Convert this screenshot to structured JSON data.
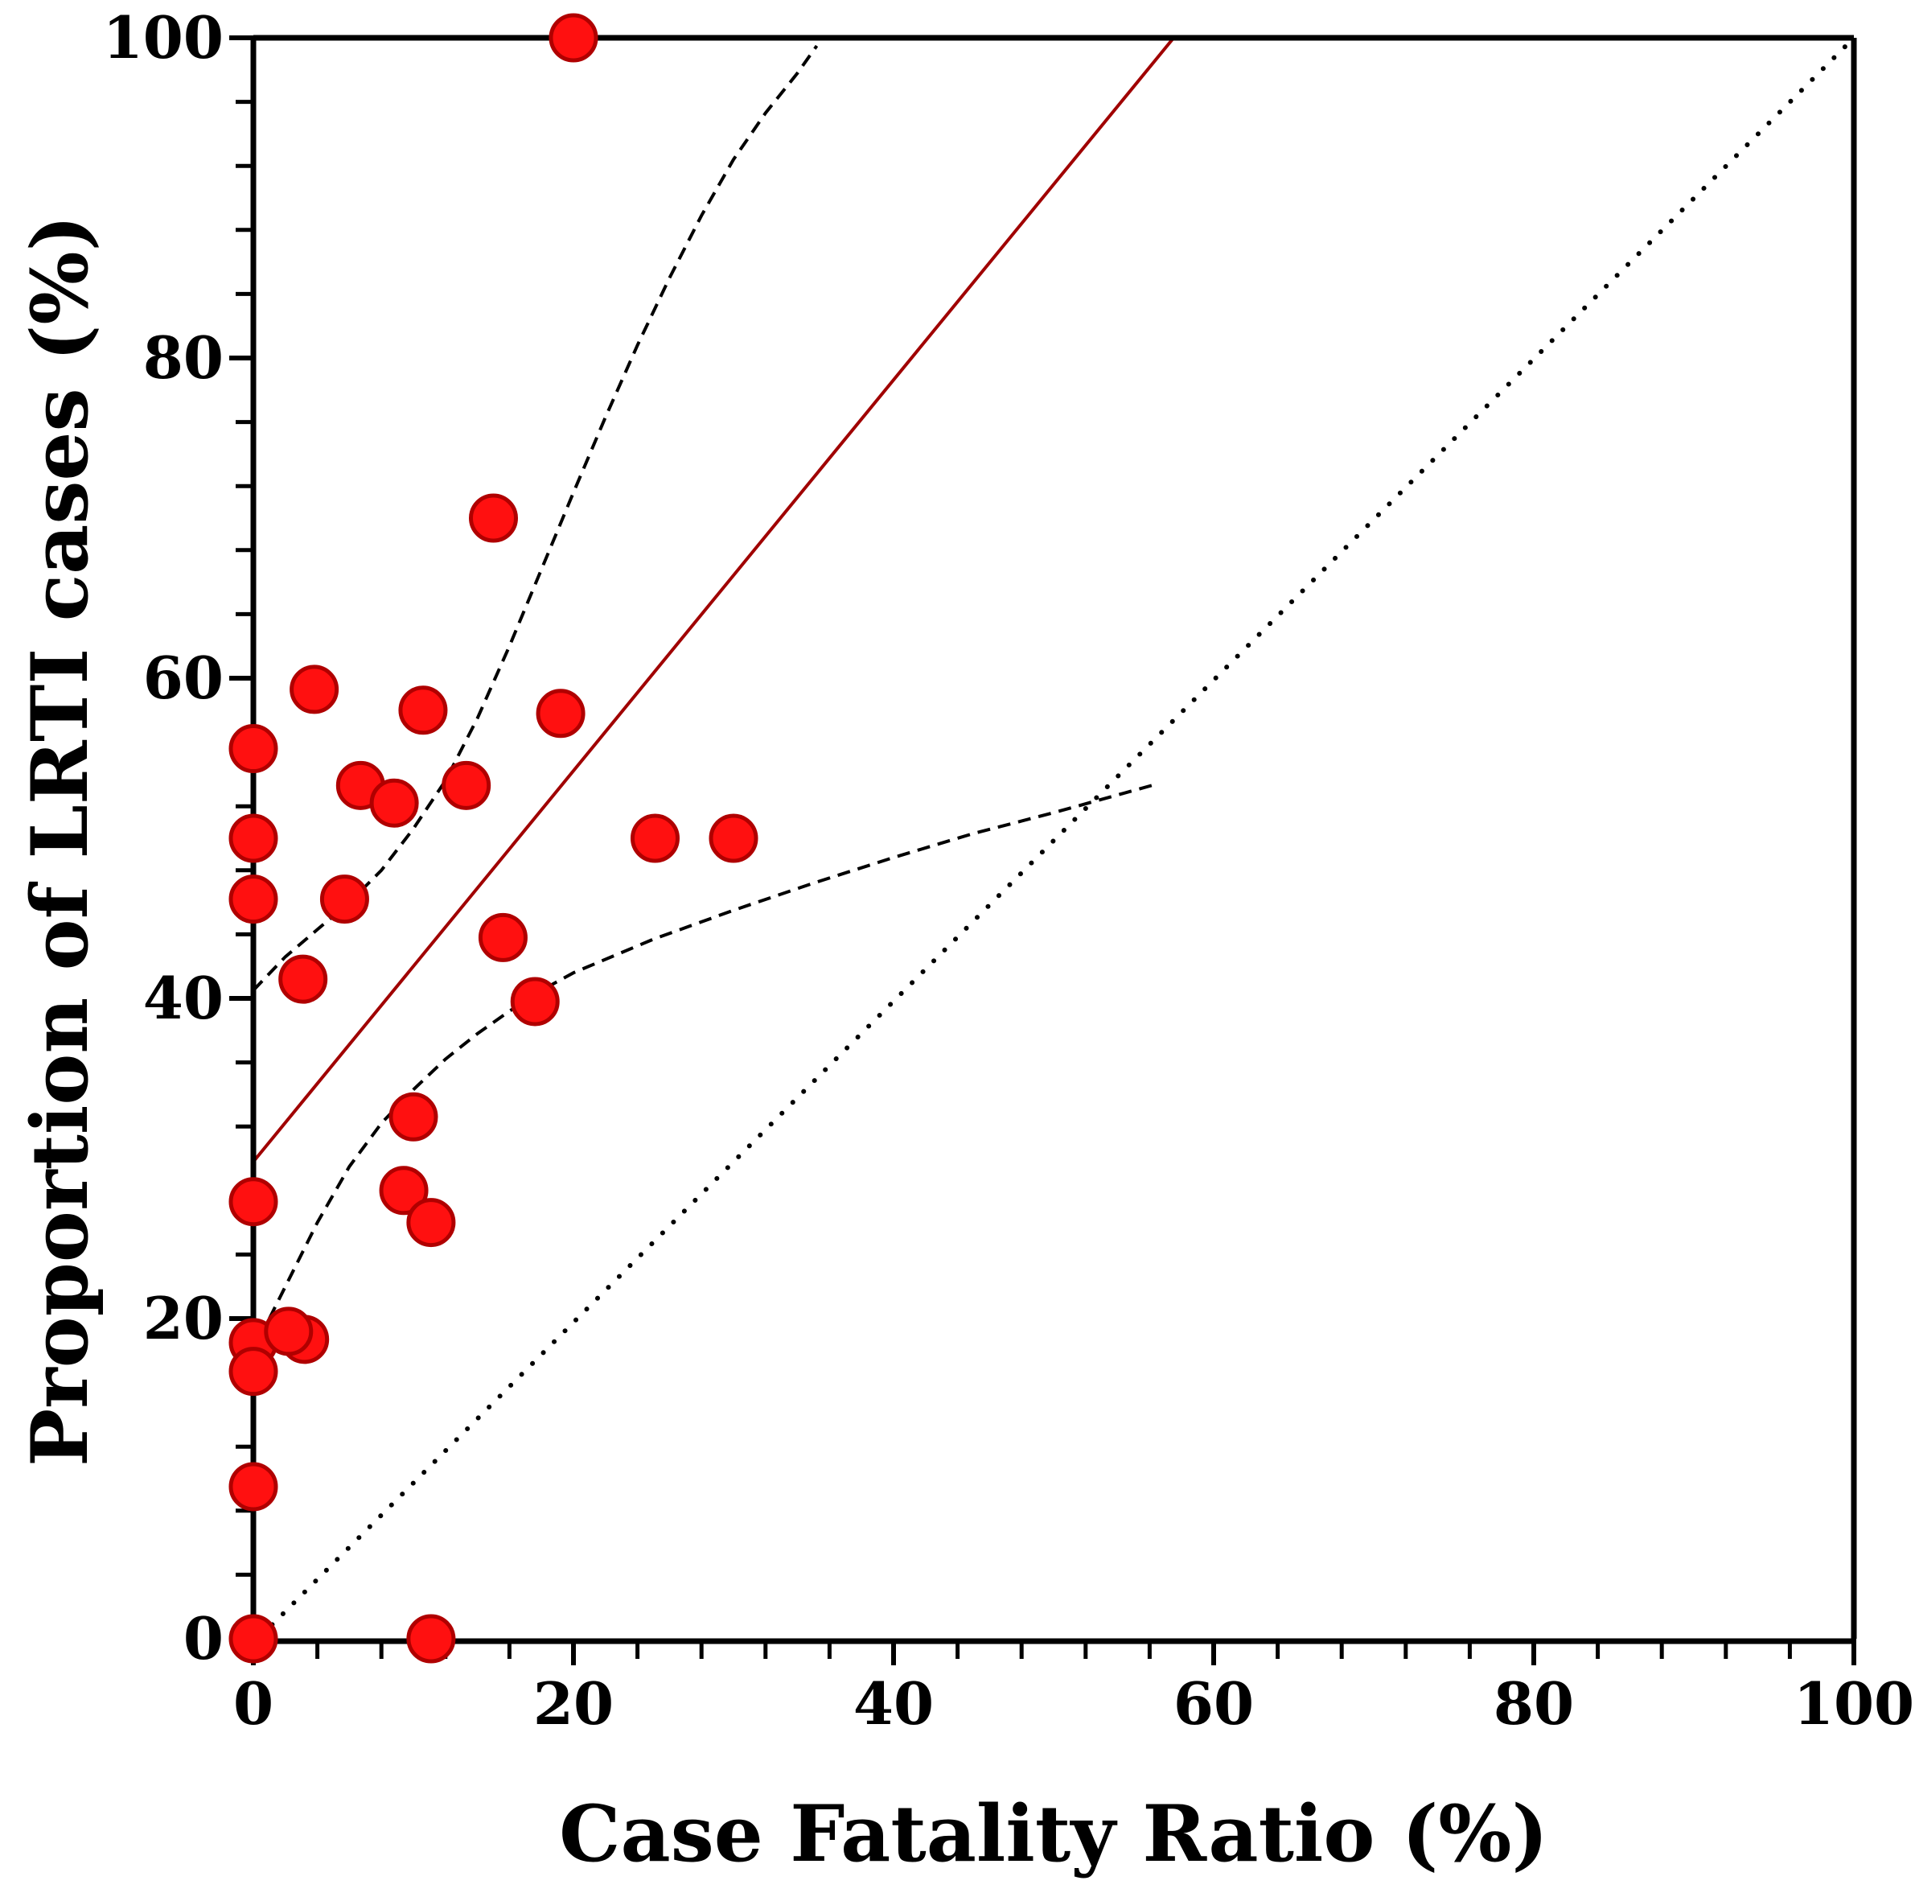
{
  "chart_data": {
    "type": "scatter",
    "xlabel": "Case Fatality Ratio (%)",
    "ylabel": "Proportion of LRTI cases (%)",
    "xlim": [
      0,
      100
    ],
    "ylim": [
      0,
      100
    ],
    "x_ticks": [
      0,
      20,
      40,
      60,
      80,
      100
    ],
    "y_ticks": [
      0,
      20,
      40,
      60,
      80,
      100
    ],
    "x_tick_labels": [
      "0",
      "20",
      "40",
      "60",
      "80",
      "100"
    ],
    "y_tick_labels": [
      "0",
      "20",
      "40",
      "60",
      "80",
      "100"
    ],
    "grid": false,
    "colors": {
      "marker_fill": "#ff1010",
      "marker_edge": "#b00000",
      "fit_line": "#a00000",
      "ci_line": "#000000",
      "identity_line": "#000000",
      "axis": "#000000"
    },
    "series": [
      {
        "name": "Studies",
        "style": "marker",
        "points": [
          [
            20.0,
            100.0
          ],
          [
            15.0,
            70.0
          ],
          [
            3.8,
            59.3
          ],
          [
            10.6,
            58.0
          ],
          [
            19.2,
            57.8
          ],
          [
            0.0,
            55.6
          ],
          [
            6.7,
            53.3
          ],
          [
            13.3,
            53.3
          ],
          [
            8.8,
            52.2
          ],
          [
            0.0,
            50.0
          ],
          [
            25.1,
            50.0
          ],
          [
            30.0,
            50.0
          ],
          [
            0.0,
            46.2
          ],
          [
            5.7,
            46.2
          ],
          [
            15.6,
            43.8
          ],
          [
            3.1,
            41.2
          ],
          [
            17.6,
            39.8
          ],
          [
            10.0,
            32.6
          ],
          [
            9.4,
            28.0
          ],
          [
            11.1,
            26.0
          ],
          [
            0.0,
            27.3
          ],
          [
            0.0,
            18.5
          ],
          [
            3.2,
            18.7
          ],
          [
            2.2,
            19.2
          ],
          [
            0.0,
            16.7
          ],
          [
            0.0,
            9.5
          ],
          [
            0.0,
            0.0
          ],
          [
            11.1,
            0.0
          ]
        ]
      },
      {
        "name": "Regression fit",
        "style": "solid",
        "points": [
          [
            0.0,
            29.8
          ],
          [
            57.5,
            100.0
          ]
        ]
      },
      {
        "name": "Upper 95% confidence band",
        "style": "dashed",
        "points": [
          [
            0.0,
            40.5
          ],
          [
            2.0,
            42.6
          ],
          [
            4.0,
            44.3
          ],
          [
            6.0,
            46.0
          ],
          [
            8.0,
            48.0
          ],
          [
            10.0,
            50.6
          ],
          [
            12.0,
            53.6
          ],
          [
            14.0,
            57.5
          ],
          [
            16.0,
            62.0
          ],
          [
            18.0,
            66.8
          ],
          [
            20.0,
            71.6
          ],
          [
            22.0,
            76.3
          ],
          [
            24.0,
            80.8
          ],
          [
            26.0,
            85.0
          ],
          [
            28.0,
            88.9
          ],
          [
            30.0,
            92.4
          ],
          [
            32.0,
            95.3
          ],
          [
            34.0,
            97.8
          ],
          [
            35.2,
            99.5
          ]
        ]
      },
      {
        "name": "Lower 95% confidence band",
        "style": "dashed",
        "points": [
          [
            1.0,
            20.0
          ],
          [
            2.0,
            22.0
          ],
          [
            4.0,
            26.0
          ],
          [
            6.0,
            29.5
          ],
          [
            8.0,
            32.2
          ],
          [
            10.0,
            34.3
          ],
          [
            12.0,
            36.2
          ],
          [
            14.0,
            37.8
          ],
          [
            16.0,
            39.2
          ],
          [
            18.0,
            40.5
          ],
          [
            20.0,
            41.6
          ],
          [
            25.0,
            43.7
          ],
          [
            30.0,
            45.5
          ],
          [
            35.0,
            47.2
          ],
          [
            40.0,
            48.8
          ],
          [
            45.0,
            50.3
          ],
          [
            50.0,
            51.6
          ],
          [
            56.5,
            53.4
          ]
        ]
      },
      {
        "name": "Line of identity",
        "style": "dotted",
        "points": [
          [
            0.5,
            0.2
          ],
          [
            100.0,
            100.0
          ]
        ]
      }
    ]
  }
}
